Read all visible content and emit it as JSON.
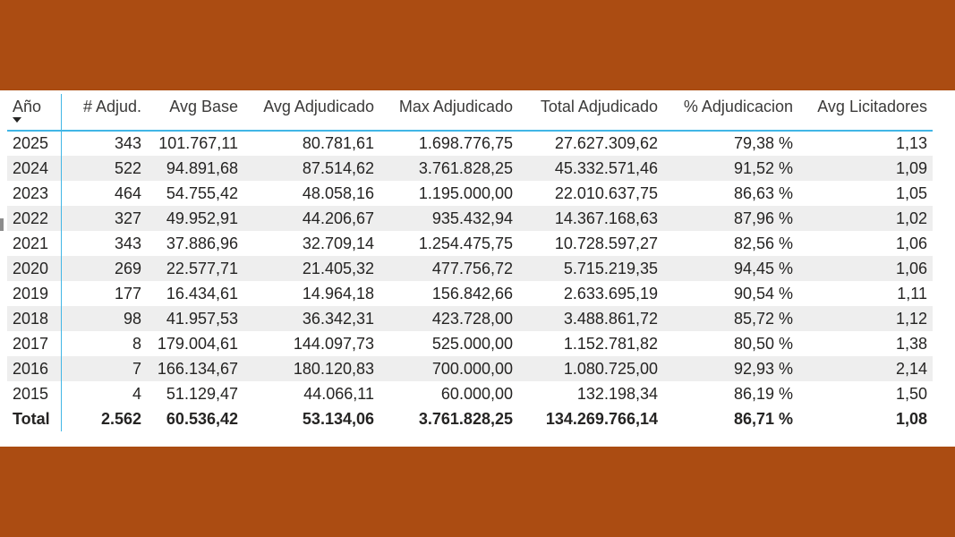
{
  "colors": {
    "background": "#ab4c12",
    "panel": "#ffffff",
    "accent": "#41b6e6",
    "row_alt": "#eeeeee"
  },
  "icons": {
    "sort": "sort-descending-icon"
  },
  "table": {
    "headers": [
      "Año",
      "# Adjud.",
      "Avg Base",
      "Avg Adjudicado",
      "Max Adjudicado",
      "Total Adjudicado",
      "% Adjudicacion",
      "Avg Licitadores"
    ],
    "rows": [
      [
        "2025",
        "343",
        "101.767,11",
        "80.781,61",
        "1.698.776,75",
        "27.627.309,62",
        "79,38 %",
        "1,13"
      ],
      [
        "2024",
        "522",
        "94.891,68",
        "87.514,62",
        "3.761.828,25",
        "45.332.571,46",
        "91,52 %",
        "1,09"
      ],
      [
        "2023",
        "464",
        "54.755,42",
        "48.058,16",
        "1.195.000,00",
        "22.010.637,75",
        "86,63 %",
        "1,05"
      ],
      [
        "2022",
        "327",
        "49.952,91",
        "44.206,67",
        "935.432,94",
        "14.367.168,63",
        "87,96 %",
        "1,02"
      ],
      [
        "2021",
        "343",
        "37.886,96",
        "32.709,14",
        "1.254.475,75",
        "10.728.597,27",
        "82,56 %",
        "1,06"
      ],
      [
        "2020",
        "269",
        "22.577,71",
        "21.405,32",
        "477.756,72",
        "5.715.219,35",
        "94,45 %",
        "1,06"
      ],
      [
        "2019",
        "177",
        "16.434,61",
        "14.964,18",
        "156.842,66",
        "2.633.695,19",
        "90,54 %",
        "1,11"
      ],
      [
        "2018",
        "98",
        "41.957,53",
        "36.342,31",
        "423.728,00",
        "3.488.861,72",
        "85,72 %",
        "1,12"
      ],
      [
        "2017",
        "8",
        "179.004,61",
        "144.097,73",
        "525.000,00",
        "1.152.781,82",
        "80,50 %",
        "1,38"
      ],
      [
        "2016",
        "7",
        "166.134,67",
        "180.120,83",
        "700.000,00",
        "1.080.725,00",
        "92,93 %",
        "2,14"
      ],
      [
        "2015",
        "4",
        "51.129,47",
        "44.066,11",
        "60.000,00",
        "132.198,34",
        "86,19 %",
        "1,50"
      ]
    ],
    "total": [
      "Total",
      "2.562",
      "60.536,42",
      "53.134,06",
      "3.761.828,25",
      "134.269.766,14",
      "86,71 %",
      "1,08"
    ]
  }
}
